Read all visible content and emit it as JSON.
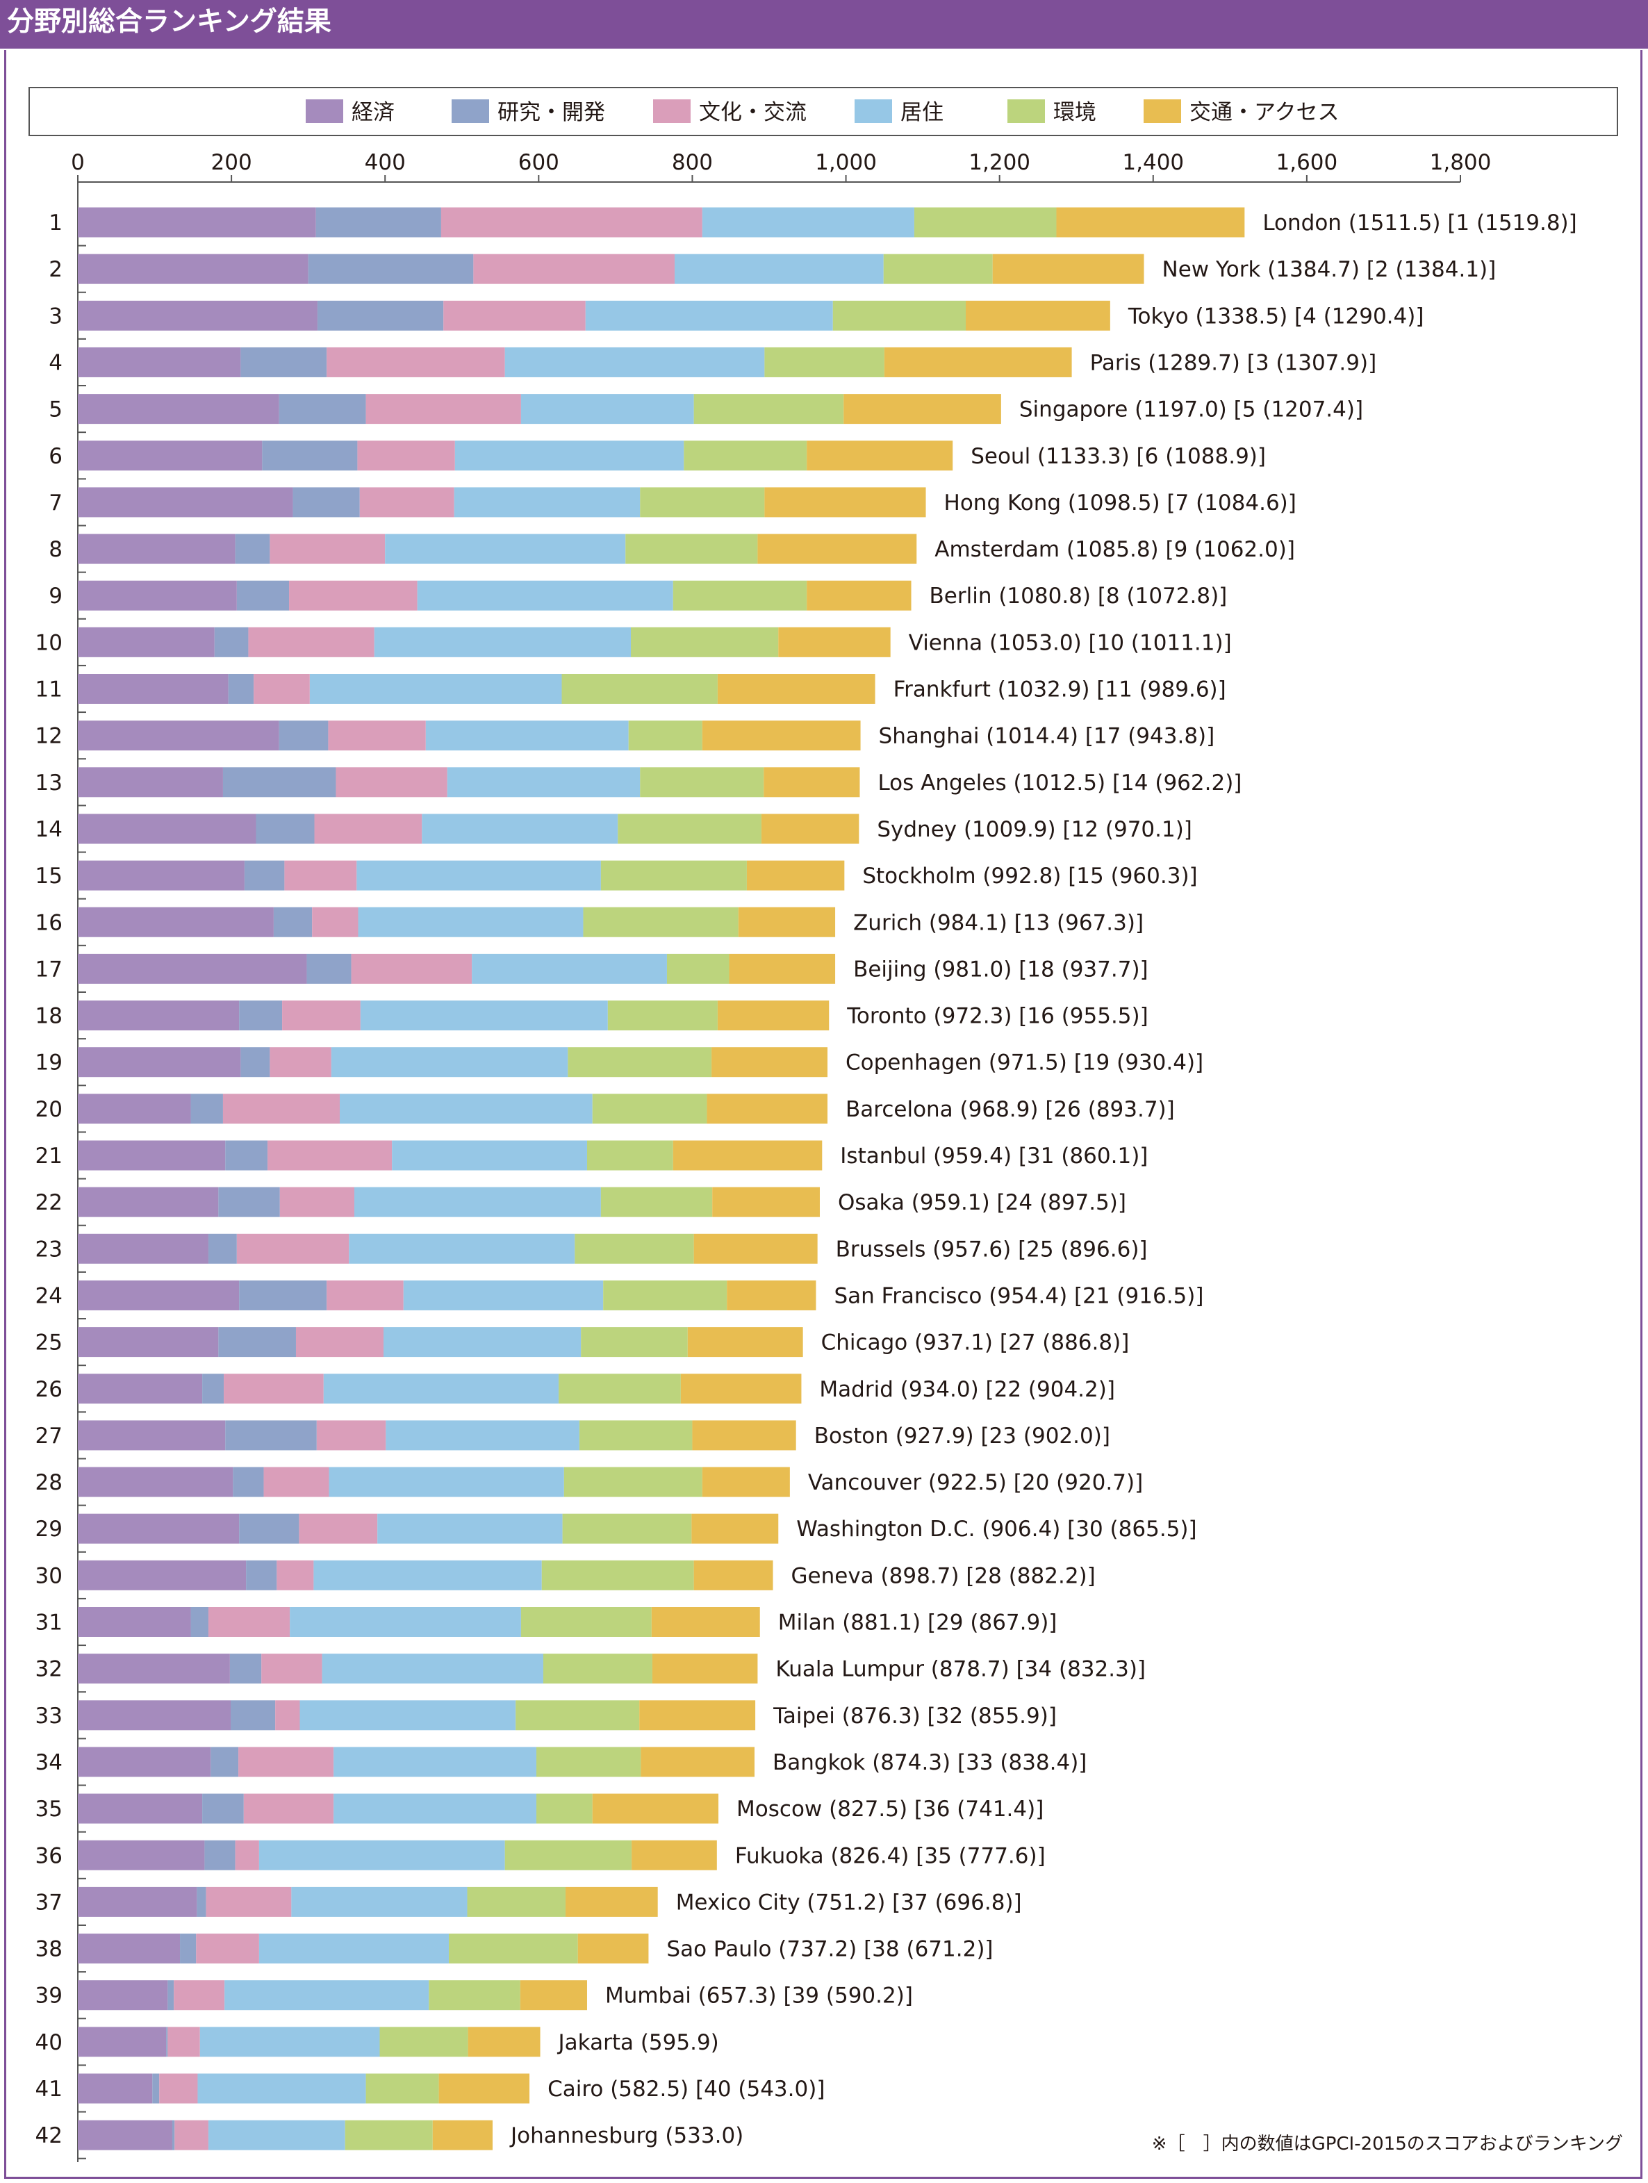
{
  "title": "分野別総合ランキング結果",
  "footnote": "※［　］内の数値はGPCI-2015のスコアおよびランキング",
  "colors": {
    "header": "#7e4f98",
    "経済": "#a58bbd",
    "研究・開発": "#8fa3c9",
    "文化・交流": "#da9eba",
    "居住": "#96c7e6",
    "環境": "#bcd47d",
    "交通・アクセス": "#e8bd51"
  },
  "chart_data": {
    "type": "bar",
    "orientation": "horizontal",
    "stacked": true,
    "xlim": [
      0,
      1800
    ],
    "x_ticks": [
      "0",
      "200",
      "400",
      "600",
      "800",
      "1,000",
      "1,200",
      "1,400",
      "1,600",
      "1,800"
    ],
    "legend": [
      "経済",
      "研究・開発",
      "文化・交流",
      "居住",
      "環境",
      "交通・アクセス"
    ],
    "legend_position": "top",
    "rows": [
      {
        "rank": "1",
        "label": "London (1511.5) [1 (1519.8)]",
        "values": [
          310,
          163,
          340,
          276,
          185,
          245
        ]
      },
      {
        "rank": "2",
        "label": "New York (1384.7) [2 (1384.1)]",
        "values": [
          300,
          215,
          262,
          272,
          142,
          197
        ]
      },
      {
        "rank": "3",
        "label": "Tokyo (1338.5) [4 (1290.4)]",
        "values": [
          312,
          164,
          185,
          322,
          173,
          188
        ]
      },
      {
        "rank": "4",
        "label": "Paris (1289.7) [3 (1307.9)]",
        "values": [
          212,
          112,
          232,
          338,
          156,
          244
        ]
      },
      {
        "rank": "5",
        "label": "Singapore (1197.0) [5 (1207.4)]",
        "values": [
          262,
          113,
          202,
          225,
          195,
          205
        ]
      },
      {
        "rank": "6",
        "label": "Seoul (1133.3) [6 (1088.9)]",
        "values": [
          240,
          124,
          127,
          298,
          160,
          190
        ]
      },
      {
        "rank": "7",
        "label": "Hong Kong (1098.5) [7 (1084.6)]",
        "values": [
          280,
          87,
          123,
          242,
          162,
          210
        ]
      },
      {
        "rank": "8",
        "label": "Amsterdam (1085.8) [9 (1062.0)]",
        "values": [
          205,
          45,
          150,
          313,
          172,
          207
        ]
      },
      {
        "rank": "9",
        "label": "Berlin (1080.8) [8 (1072.8)]",
        "values": [
          207,
          68,
          167,
          333,
          174,
          136
        ]
      },
      {
        "rank": "10",
        "label": "Vienna (1053.0) [10 (1011.1)]",
        "values": [
          178,
          44,
          164,
          334,
          192,
          146
        ]
      },
      {
        "rank": "11",
        "label": "Frankfurt (1032.9) [11 (989.6)]",
        "values": [
          196,
          33,
          73,
          328,
          203,
          205
        ]
      },
      {
        "rank": "12",
        "label": "Shanghai (1014.4) [17 (943.8)]",
        "values": [
          262,
          64,
          127,
          264,
          96,
          206
        ]
      },
      {
        "rank": "13",
        "label": "Los Angeles (1012.5) [14 (962.2)]",
        "values": [
          189,
          147,
          145,
          251,
          161,
          125
        ]
      },
      {
        "rank": "14",
        "label": "Sydney (1009.9) [12 (970.1)]",
        "values": [
          232,
          76,
          140,
          255,
          187,
          127
        ]
      },
      {
        "rank": "15",
        "label": "Stockholm (992.8) [15 (960.3)]",
        "values": [
          217,
          52,
          94,
          318,
          190,
          127
        ]
      },
      {
        "rank": "16",
        "label": "Zurich (984.1) [13 (967.3)]",
        "values": [
          255,
          50,
          60,
          293,
          202,
          126
        ]
      },
      {
        "rank": "17",
        "label": "Beijing (981.0) [18 (937.7)]",
        "values": [
          298,
          58,
          157,
          254,
          81,
          138
        ]
      },
      {
        "rank": "18",
        "label": "Toronto (972.3) [16 (955.5)]",
        "values": [
          210,
          56,
          102,
          322,
          143,
          145
        ]
      },
      {
        "rank": "19",
        "label": "Copenhagen (971.5) [19 (930.4)]",
        "values": [
          212,
          38,
          80,
          308,
          187,
          151
        ]
      },
      {
        "rank": "20",
        "label": "Barcelona (968.9) [26 (893.7)]",
        "values": [
          147,
          42,
          152,
          329,
          149,
          157
        ]
      },
      {
        "rank": "21",
        "label": "Istanbul (959.4) [31 (860.1)]",
        "values": [
          192,
          55,
          162,
          254,
          112,
          194
        ]
      },
      {
        "rank": "22",
        "label": "Osaka (959.1) [24 (897.5)]",
        "values": [
          183,
          80,
          97,
          321,
          145,
          140
        ]
      },
      {
        "rank": "23",
        "label": "Brussels (957.6) [25 (896.6)]",
        "values": [
          170,
          37,
          146,
          294,
          155,
          161
        ]
      },
      {
        "rank": "24",
        "label": "San Francisco (954.4) [21 (916.5)]",
        "values": [
          210,
          114,
          100,
          260,
          161,
          116
        ]
      },
      {
        "rank": "25",
        "label": "Chicago (937.1) [27 (886.8)]",
        "values": [
          183,
          101,
          114,
          257,
          139,
          150
        ]
      },
      {
        "rank": "26",
        "label": "Madrid (934.0) [22 (904.2)]",
        "values": [
          162,
          28,
          130,
          306,
          159,
          157
        ]
      },
      {
        "rank": "27",
        "label": "Boston (927.9) [23 (902.0)]",
        "values": [
          192,
          119,
          90,
          252,
          147,
          135
        ]
      },
      {
        "rank": "28",
        "label": "Vancouver (922.5) [20 (920.7)]",
        "values": [
          202,
          40,
          85,
          306,
          180,
          114
        ]
      },
      {
        "rank": "29",
        "label": "Washington D.C. (906.4) [30 (865.5)]",
        "values": [
          210,
          78,
          102,
          241,
          168,
          113
        ]
      },
      {
        "rank": "30",
        "label": "Geneva (898.7) [28 (882.2)]",
        "values": [
          219,
          40,
          48,
          297,
          198,
          103
        ]
      },
      {
        "rank": "31",
        "label": "Milan (881.1) [29 (867.9)]",
        "values": [
          147,
          23,
          106,
          301,
          170,
          141
        ]
      },
      {
        "rank": "32",
        "label": "Kuala Lumpur (878.7) [34 (832.3)]",
        "values": [
          198,
          41,
          79,
          288,
          142,
          137
        ]
      },
      {
        "rank": "33",
        "label": "Taipei (876.3) [32 (855.9)]",
        "values": [
          199,
          58,
          32,
          281,
          161,
          151
        ]
      },
      {
        "rank": "34",
        "label": "Bangkok (874.3) [33 (838.4)]",
        "values": [
          173,
          36,
          124,
          264,
          136,
          148
        ]
      },
      {
        "rank": "35",
        "label": "Moscow (827.5) [36 (741.4)]",
        "values": [
          162,
          54,
          117,
          264,
          73,
          164
        ]
      },
      {
        "rank": "36",
        "label": "Fukuoka (826.4) [35 (777.6)]",
        "values": [
          165,
          40,
          31,
          320,
          165,
          111
        ]
      },
      {
        "rank": "37",
        "label": "Mexico City (751.2) [37 (696.8)]",
        "values": [
          155,
          12,
          111,
          229,
          128,
          120
        ]
      },
      {
        "rank": "38",
        "label": "Sao Paulo (737.2) [38 (671.2)]",
        "values": [
          133,
          21,
          82,
          247,
          168,
          92
        ]
      },
      {
        "rank": "39",
        "label": "Mumbai (657.3) [39 (590.2)]",
        "values": [
          117,
          8,
          66,
          266,
          119,
          87
        ]
      },
      {
        "rank": "40",
        "label": "Jakarta (595.9)",
        "values": [
          115,
          2,
          42,
          234,
          115,
          94
        ]
      },
      {
        "rank": "41",
        "label": "Cairo (582.5) [40 (543.0)]",
        "values": [
          97,
          9,
          50,
          219,
          95,
          118
        ]
      },
      {
        "rank": "42",
        "label": "Johannesburg (533.0)",
        "values": [
          123,
          3,
          44,
          178,
          114,
          78
        ]
      }
    ]
  }
}
